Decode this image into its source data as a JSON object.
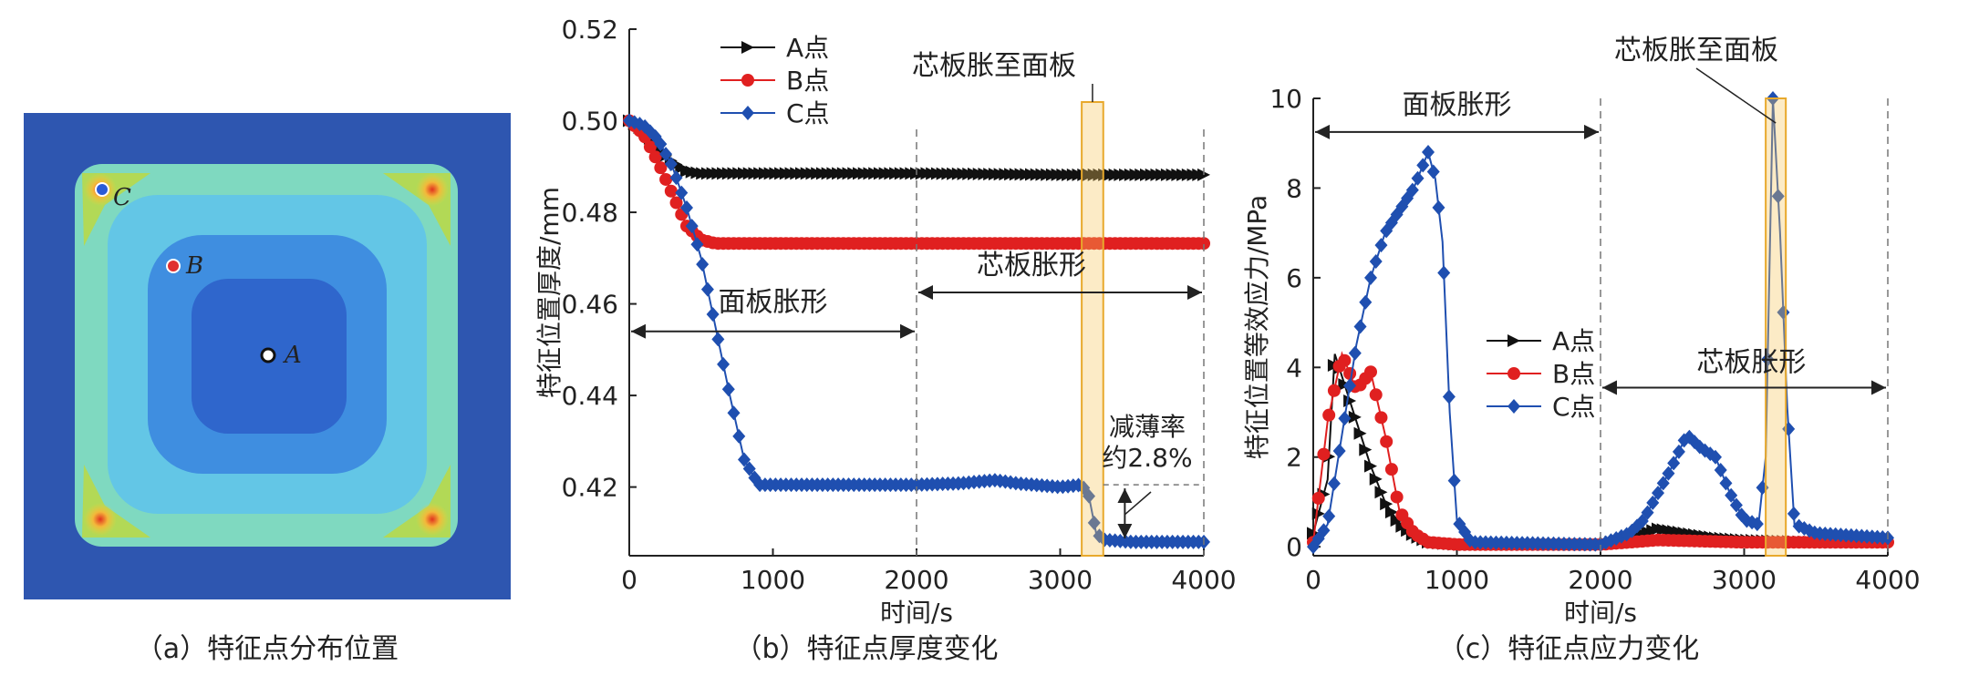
{
  "panel_a": {
    "caption": "（a）特征点分布位置",
    "points": [
      {
        "label": "A",
        "color": "#ffffff"
      },
      {
        "label": "B",
        "color": "#e03030"
      },
      {
        "label": "C",
        "color": "#2a5bd7"
      }
    ],
    "colors": {
      "background": "#2e56b0",
      "outer": "#7fd9c0",
      "ring_light": "#63c6e6",
      "ring_mid": "#3f8ee0",
      "center": "#2f66cc",
      "corner": "#e8d13a",
      "hot": "#e1331f"
    }
  },
  "panel_b": {
    "caption": "（b）特征点厚度变化",
    "annotation_swell_face": "面板胀形",
    "annotation_swell_core": "芯板胀形",
    "annotation_core_to_face": "芯板胀至面板",
    "annotation_thin_1": "减薄率",
    "annotation_thin_2": "约2.8%"
  },
  "panel_c": {
    "caption": "（c）特征点应力变化",
    "annotation_swell_face": "面板胀形",
    "annotation_swell_core": "芯板胀形",
    "annotation_core_to_face": "芯板胀至面板"
  },
  "chart_data": [
    {
      "type": "line",
      "xlabel": "时间/s",
      "ylabel": "特征位置厚度/mm",
      "xlim": [
        0,
        4000
      ],
      "ylim": [
        0.405,
        0.52
      ],
      "xticks": [
        0,
        1000,
        2000,
        3000,
        4000
      ],
      "yticks": [
        0.42,
        0.44,
        0.46,
        0.48,
        0.5,
        0.52
      ],
      "legend_position": "top-left",
      "series": [
        {
          "name": "A点",
          "color": "#111111",
          "marker": "triangle",
          "x": [
            0,
            100,
            200,
            300,
            400,
            500,
            1000,
            2000,
            3000,
            4000
          ],
          "y": [
            0.5,
            0.498,
            0.494,
            0.491,
            0.489,
            0.4885,
            0.4885,
            0.4885,
            0.4882,
            0.4882
          ]
        },
        {
          "name": "B点",
          "color": "#e02020",
          "marker": "circle",
          "x": [
            0,
            100,
            200,
            300,
            400,
            500,
            600,
            1000,
            2000,
            3000,
            4000
          ],
          "y": [
            0.5,
            0.497,
            0.491,
            0.484,
            0.477,
            0.474,
            0.4732,
            0.4732,
            0.4732,
            0.4732,
            0.4732
          ]
        },
        {
          "name": "C点",
          "color": "#1f4fb0",
          "marker": "diamond",
          "x": [
            0,
            100,
            200,
            300,
            400,
            500,
            600,
            700,
            800,
            900,
            1000,
            2000,
            2300,
            2550,
            2700,
            3000,
            3150,
            3200,
            3250,
            3300,
            3500,
            4000
          ],
          "y": [
            0.5,
            0.499,
            0.496,
            0.49,
            0.481,
            0.47,
            0.455,
            0.44,
            0.426,
            0.4205,
            0.4205,
            0.4205,
            0.4208,
            0.4215,
            0.4208,
            0.42,
            0.4205,
            0.418,
            0.41,
            0.4085,
            0.408,
            0.408
          ]
        }
      ]
    },
    {
      "type": "line",
      "xlabel": "时间/s",
      "ylabel": "特征位置等效应力/MPa",
      "xlim": [
        0,
        4000
      ],
      "ylim": [
        -0.2,
        10
      ],
      "xticks": [
        0,
        1000,
        2000,
        3000,
        4000
      ],
      "yticks": [
        0,
        2,
        4,
        6,
        8,
        10
      ],
      "legend_position": "center",
      "series": [
        {
          "name": "A点",
          "color": "#111111",
          "marker": "triangle",
          "x": [
            0,
            100,
            150,
            200,
            300,
            400,
            500,
            600,
            700,
            800,
            1000,
            2000,
            2200,
            2400,
            2600,
            2800,
            3000,
            3500,
            4000
          ],
          "y": [
            0.3,
            1.5,
            4.3,
            3.8,
            2.8,
            1.8,
            1.0,
            0.5,
            0.25,
            0.1,
            0.05,
            0.05,
            0.2,
            0.4,
            0.3,
            0.2,
            0.15,
            0.1,
            0.1
          ]
        },
        {
          "name": "B点",
          "color": "#e02020",
          "marker": "circle",
          "x": [
            0,
            100,
            200,
            300,
            400,
            500,
            600,
            700,
            800,
            1000,
            2000,
            2400,
            3000,
            4000
          ],
          "y": [
            0.1,
            2.8,
            4.3,
            3.5,
            3.9,
            2.5,
            0.8,
            0.3,
            0.1,
            0.05,
            0.05,
            0.15,
            0.1,
            0.1
          ]
        },
        {
          "name": "C点",
          "color": "#1f4fb0",
          "marker": "diamond",
          "x": [
            0,
            100,
            200,
            300,
            400,
            500,
            600,
            700,
            800,
            850,
            900,
            950,
            1000,
            1100,
            2000,
            2200,
            2300,
            2400,
            2500,
            2600,
            2700,
            2800,
            2900,
            3000,
            3100,
            3150,
            3200,
            3250,
            3300,
            3350,
            3500,
            4000
          ],
          "y": [
            0,
            0.5,
            2.5,
            4.5,
            6.0,
            7.0,
            7.5,
            8.0,
            8.8,
            8.2,
            6.8,
            3.0,
            0.6,
            0.1,
            0.05,
            0.3,
            0.6,
            1.2,
            1.8,
            2.5,
            2.2,
            2.0,
            1.2,
            0.6,
            0.5,
            2.0,
            10.0,
            7.0,
            3.1,
            0.5,
            0.3,
            0.2
          ]
        }
      ]
    }
  ]
}
